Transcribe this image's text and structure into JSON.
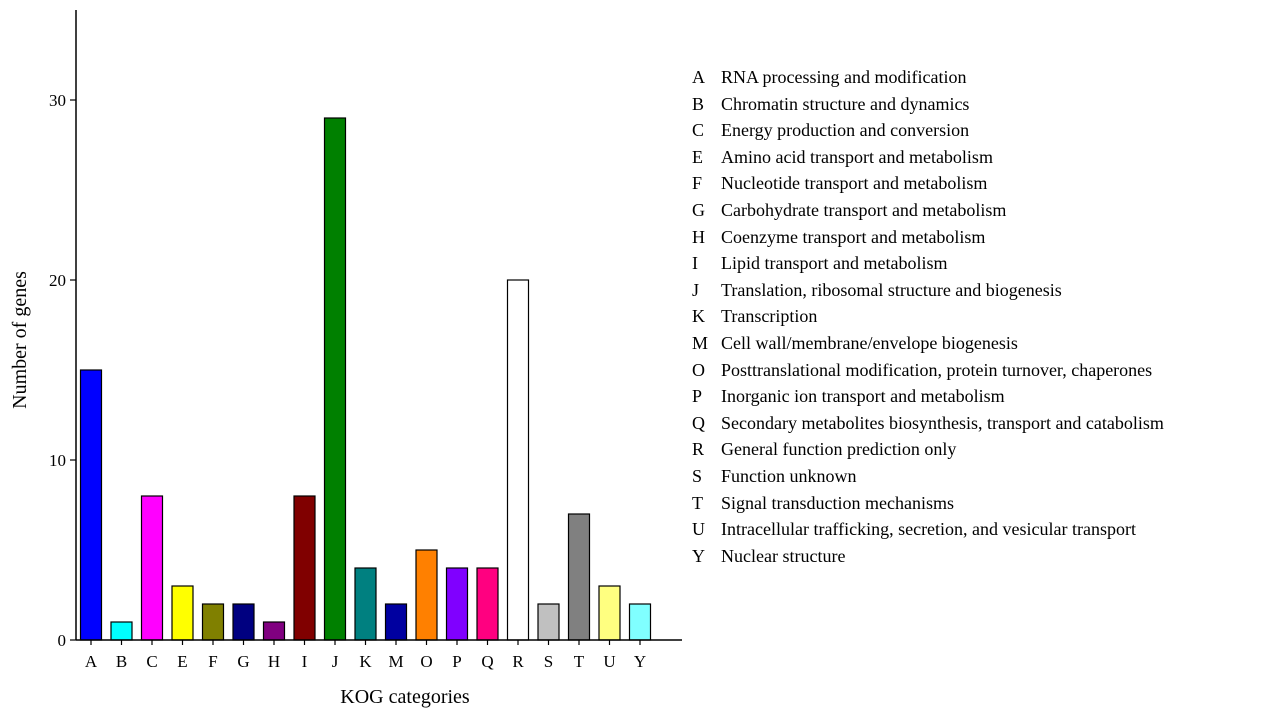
{
  "chart_data": {
    "type": "bar",
    "xlabel": "KOG categories",
    "ylabel": "Number of genes",
    "ylim": [
      0,
      35
    ],
    "yticks": [
      "0",
      "10",
      "20",
      "30"
    ],
    "grid": false,
    "legend_position": "right",
    "categories": [
      "A",
      "B",
      "C",
      "E",
      "F",
      "G",
      "H",
      "I",
      "J",
      "K",
      "M",
      "O",
      "P",
      "Q",
      "R",
      "S",
      "T",
      "U",
      "Y"
    ],
    "values": [
      15,
      1,
      8,
      3,
      2,
      2,
      1,
      8,
      29,
      4,
      2,
      5,
      4,
      4,
      20,
      2,
      7,
      3,
      2
    ],
    "colors": [
      "#0000ff",
      "#00ffff",
      "#ff00ff",
      "#ffff00",
      "#808000",
      "#000080",
      "#800080",
      "#800000",
      "#008000",
      "#008080",
      "#0000a0",
      "#ff8000",
      "#8000ff",
      "#ff0080",
      "#ffffff",
      "#c0c0c0",
      "#808080",
      "#ffff80",
      "#80ffff"
    ],
    "legend": [
      {
        "code": "A",
        "label": "RNA processing and modification"
      },
      {
        "code": "B",
        "label": "Chromatin structure and dynamics"
      },
      {
        "code": "C",
        "label": "Energy production and conversion"
      },
      {
        "code": "E",
        "label": "Amino acid transport and metabolism"
      },
      {
        "code": "F",
        "label": "Nucleotide transport and metabolism"
      },
      {
        "code": "G",
        "label": "Carbohydrate transport and metabolism"
      },
      {
        "code": "H",
        "label": "Coenzyme transport and metabolism"
      },
      {
        "code": "I",
        "label": "Lipid transport and metabolism"
      },
      {
        "code": "J",
        "label": "Translation, ribosomal structure and biogenesis"
      },
      {
        "code": "K",
        "label": "Transcription"
      },
      {
        "code": "M",
        "label": "Cell wall/membrane/envelope biogenesis"
      },
      {
        "code": "O",
        "label": "Posttranslational modification, protein turnover, chaperones"
      },
      {
        "code": "P",
        "label": "Inorganic ion transport and metabolism"
      },
      {
        "code": "Q",
        "label": "Secondary metabolites biosynthesis, transport and catabolism"
      },
      {
        "code": "R",
        "label": "General function prediction only"
      },
      {
        "code": "S",
        "label": "Function unknown"
      },
      {
        "code": "T",
        "label": "Signal transduction mechanisms"
      },
      {
        "code": "U",
        "label": "Intracellular trafficking, secretion, and vesicular transport"
      },
      {
        "code": "Y",
        "label": "Nuclear structure"
      }
    ]
  }
}
